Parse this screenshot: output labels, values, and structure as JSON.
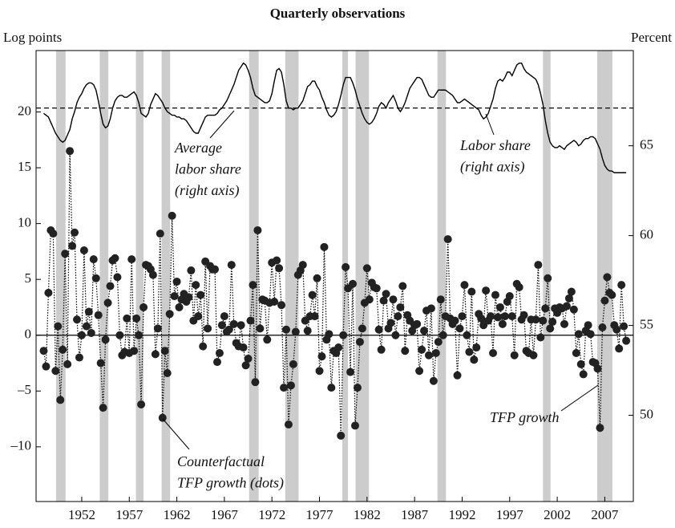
{
  "chart_data": {
    "type": "line",
    "title": "Quarterly observations",
    "y_label": "Log points",
    "y2_label": "Percent",
    "xlim": [
      1947.2,
      2010.0
    ],
    "xticks": [
      1952,
      1957,
      1962,
      1967,
      1972,
      1977,
      1982,
      1987,
      1992,
      1997,
      2002,
      2007
    ],
    "ylim": [
      -14.9,
      25.5
    ],
    "yticks": [
      {
        "value": -10,
        "label": "–10"
      },
      {
        "value": -5,
        "label": "–5"
      },
      0,
      5,
      10,
      15,
      20
    ],
    "y2lim": [
      45.2,
      70.3
    ],
    "y2ticks": [
      50,
      55,
      60,
      65
    ],
    "shaded_periods": [
      [
        1949.3,
        1950.3
      ],
      [
        1953.9,
        1954.8
      ],
      [
        1957.7,
        1958.5
      ],
      [
        1960.4,
        1961.3
      ],
      [
        1969.6,
        1970.6
      ],
      [
        1973.4,
        1974.8
      ],
      [
        1979.4,
        1980.0
      ],
      [
        1980.8,
        1982.2
      ],
      [
        1989.4,
        1990.3
      ],
      [
        2000.5,
        2001.3
      ],
      [
        2006.2,
        2007.8
      ]
    ],
    "shade_color": "#cccccc",
    "hlines": [
      {
        "value": 0,
        "axis": "y",
        "dash": "solid"
      },
      {
        "value": 67.1,
        "axis": "y2",
        "dash": "dashed"
      }
    ],
    "x": [
      1948,
      1948.25,
      1948.5,
      1948.75,
      1949,
      1949.25,
      1949.5,
      1949.75,
      1950,
      1950.25,
      1950.5,
      1950.75,
      1951,
      1951.25,
      1951.5,
      1951.75,
      1952,
      1952.25,
      1952.5,
      1952.75,
      1953,
      1953.25,
      1953.5,
      1953.75,
      1954,
      1954.25,
      1954.5,
      1954.75,
      1955,
      1955.25,
      1955.5,
      1955.75,
      1956,
      1956.25,
      1956.5,
      1956.75,
      1957,
      1957.25,
      1957.5,
      1957.75,
      1958,
      1958.25,
      1958.5,
      1958.75,
      1959,
      1959.25,
      1959.5,
      1959.75,
      1960,
      1960.25,
      1960.5,
      1960.75,
      1961,
      1961.25,
      1961.5,
      1961.75,
      1962,
      1962.25,
      1962.5,
      1962.75,
      1963,
      1963.25,
      1963.5,
      1963.75,
      1964,
      1964.25,
      1964.5,
      1964.75,
      1965,
      1965.25,
      1965.5,
      1965.75,
      1966,
      1966.25,
      1966.5,
      1966.75,
      1967,
      1967.25,
      1967.5,
      1967.75,
      1968,
      1968.25,
      1968.5,
      1968.75,
      1969,
      1969.25,
      1969.5,
      1969.75,
      1970,
      1970.25,
      1970.5,
      1970.75,
      1971,
      1971.25,
      1971.5,
      1971.75,
      1972,
      1972.25,
      1972.5,
      1972.75,
      1973,
      1973.25,
      1973.5,
      1973.75,
      1974,
      1974.25,
      1974.5,
      1974.75,
      1975,
      1975.25,
      1975.5,
      1975.75,
      1976,
      1976.25,
      1976.5,
      1976.75,
      1977,
      1977.25,
      1977.5,
      1977.75,
      1978,
      1978.25,
      1978.5,
      1978.75,
      1979,
      1979.25,
      1979.5,
      1979.75,
      1980,
      1980.25,
      1980.5,
      1980.75,
      1981,
      1981.25,
      1981.5,
      1981.75,
      1982,
      1982.25,
      1982.5,
      1982.75,
      1983,
      1983.25,
      1983.5,
      1983.75,
      1984,
      1984.25,
      1984.5,
      1984.75,
      1985,
      1985.25,
      1985.5,
      1985.75,
      1986,
      1986.25,
      1986.5,
      1986.75,
      1987,
      1987.25,
      1987.5,
      1987.75,
      1988,
      1988.25,
      1988.5,
      1988.75,
      1989,
      1989.25,
      1989.5,
      1989.75,
      1990,
      1990.25,
      1990.5,
      1990.75,
      1991,
      1991.25,
      1991.5,
      1991.75,
      1992,
      1992.25,
      1992.5,
      1992.75,
      1993,
      1993.25,
      1993.5,
      1993.75,
      1994,
      1994.25,
      1994.5,
      1994.75,
      1995,
      1995.25,
      1995.5,
      1995.75,
      1996,
      1996.25,
      1996.5,
      1996.75,
      1997,
      1997.25,
      1997.5,
      1997.75,
      1998,
      1998.25,
      1998.5,
      1998.75,
      1999,
      1999.25,
      1999.5,
      1999.75,
      2000,
      2000.25,
      2000.5,
      2000.75,
      2001,
      2001.25,
      2001.5,
      2001.75,
      2002,
      2002.25,
      2002.5,
      2002.75,
      2003,
      2003.25,
      2003.5,
      2003.75,
      2004,
      2004.25,
      2004.5,
      2004.75,
      2005,
      2005.25,
      2005.5,
      2005.75,
      2006,
      2006.25,
      2006.5,
      2006.75,
      2007,
      2007.25,
      2007.5,
      2007.75,
      2008,
      2008.25,
      2008.5,
      2008.75,
      2009,
      2009.25
    ],
    "series": [
      {
        "color": "#000000",
        "line": "dotted",
        "axis": "y",
        "values": [
          -1.4,
          -2.8,
          3.8,
          9.4,
          9.1,
          -3.2,
          0.8,
          -5.8,
          -1.3,
          7.3,
          -2.6,
          16.5,
          8.0,
          9.2,
          1.4,
          -2.0,
          0,
          7.6,
          0.8,
          2.1,
          0.2,
          6.8,
          5.1,
          1.8,
          -2.5,
          -6.5,
          -0.4,
          2.9,
          4.4,
          6.7,
          6.9,
          5.2,
          0,
          -1.8,
          -1.5,
          1.5,
          -1.6,
          6.8,
          -1.4,
          1.5,
          0,
          -6.2,
          2.5,
          6.3,
          6.2,
          5.9,
          5.4,
          -1.7,
          0.6,
          9.1,
          -7.4,
          -1.4,
          -3.4,
          1.9,
          10.7,
          3.5,
          4.8,
          2.5,
          3.2,
          3.7,
          3.0,
          3.4,
          5.8,
          1.3,
          4.5,
          1.7,
          3.6,
          -1.0,
          6.6,
          0.6,
          6.2,
          5.9,
          5.9,
          -2.4,
          -1.6,
          0.9,
          1.7,
          0.3,
          0.5,
          6.3,
          1.0,
          -0.7,
          -1.0,
          0.9,
          -1.1,
          -2.7,
          -2.1,
          1.3,
          4.5,
          -4.2,
          9.4,
          0.6,
          3.2,
          3.1,
          -0.4,
          2.9,
          6.5,
          3.0,
          6.7,
          6.0,
          2.7,
          -4.7,
          0.5,
          -8.0,
          -4.5,
          -2.6,
          0.3,
          5.4,
          5.8,
          6.3,
          1.3,
          0.4,
          1.7,
          3.6,
          1.7,
          5.1,
          -3.2,
          -1.9,
          7.9,
          -0.4,
          0.1,
          -4.7,
          -1.4,
          -1.6,
          -1.1,
          -9.0,
          0,
          6.1,
          4.2,
          -3.3,
          4.6,
          -8.1,
          -4.7,
          -0.6,
          0.6,
          2.9,
          6.0,
          3.2,
          4.7,
          4.3,
          4.2,
          0.5,
          -1.3,
          3.1,
          3.7,
          0.6,
          1.1,
          3.2,
          0,
          1.7,
          2.5,
          4.4,
          -1.4,
          1.8,
          1.3,
          0.4,
          0.9,
          1.0,
          -3.2,
          -1.3,
          0.4,
          2.2,
          -1.8,
          2.4,
          -4.1,
          -1.6,
          -0.6,
          3.2,
          0,
          1.7,
          8.6,
          1.5,
          1.0,
          1.3,
          -3.6,
          0.6,
          1.7,
          4.5,
          0,
          -1.5,
          3.9,
          -2.2,
          -1.1,
          1.9,
          1.5,
          0.9,
          4.0,
          1.3,
          1.7,
          -1.6,
          3.6,
          1.6,
          2.5,
          1.0,
          1.7,
          3.0,
          3.5,
          1.7,
          -1.8,
          4.6,
          4.3,
          1.4,
          1.8,
          -1.4,
          -1.6,
          1.4,
          -1.8,
          1.4,
          6.3,
          -0.2,
          1.3,
          2.4,
          5.1,
          0.6,
          1.2,
          2.4,
          2.0,
          2.5,
          2.4,
          1.0,
          2.6,
          3.3,
          3.9,
          2.3,
          -1.6,
          0.1,
          -2.6,
          -3.5,
          0.4,
          0.9,
          0.1,
          -2.4,
          -2.5,
          -3.0,
          -8.3,
          0.7,
          3.1,
          5.2,
          3.8,
          3.6,
          0.9,
          0.5,
          -1.2,
          4.5,
          0.8,
          -0.5
        ]
      },
      {
        "color": "#222222",
        "marker": "circle",
        "axis": "y",
        "values": [
          -1.4,
          -2.8,
          3.8,
          9.4,
          9.1,
          -3.2,
          0.8,
          -5.8,
          -1.3,
          7.3,
          -2.6,
          16.5,
          8.0,
          9.2,
          1.4,
          -2.0,
          0,
          7.6,
          0.8,
          2.1,
          0.2,
          6.8,
          5.1,
          1.8,
          -2.5,
          -6.5,
          -0.4,
          2.9,
          4.4,
          6.7,
          6.9,
          5.2,
          0,
          -1.8,
          -1.5,
          1.5,
          -1.6,
          6.8,
          -1.4,
          1.5,
          0,
          -6.2,
          2.5,
          6.3,
          6.2,
          5.9,
          5.4,
          -1.7,
          0.6,
          9.1,
          -7.4,
          -1.4,
          -3.4,
          1.9,
          10.7,
          3.5,
          4.8,
          2.5,
          3.2,
          3.7,
          3.0,
          3.4,
          5.8,
          1.3,
          4.5,
          1.7,
          3.6,
          -1.0,
          6.6,
          0.6,
          6.2,
          5.9,
          5.9,
          -2.4,
          -1.6,
          0.9,
          1.7,
          0.3,
          0.5,
          6.3,
          1.0,
          -0.7,
          -1.0,
          0.9,
          -1.1,
          -2.7,
          -2.1,
          1.3,
          4.5,
          -4.2,
          9.4,
          0.6,
          3.2,
          3.1,
          -0.4,
          2.9,
          6.5,
          3.0,
          6.7,
          6.0,
          2.7,
          -4.7,
          0.5,
          -8.0,
          -4.5,
          -2.6,
          0.3,
          5.4,
          5.8,
          6.3,
          1.3,
          0.4,
          1.7,
          3.6,
          1.7,
          5.1,
          -3.2,
          -1.9,
          7.9,
          -0.4,
          0.1,
          -4.7,
          -1.4,
          -1.6,
          -1.1,
          -9.0,
          0,
          6.1,
          4.2,
          -3.3,
          4.6,
          -8.1,
          -4.7,
          -0.6,
          0.6,
          2.9,
          6.0,
          3.2,
          4.7,
          4.3,
          4.2,
          0.5,
          -1.3,
          3.1,
          3.7,
          0.6,
          1.1,
          3.2,
          0,
          1.7,
          2.5,
          4.4,
          -1.4,
          1.8,
          1.3,
          0.4,
          0.9,
          1.0,
          -3.2,
          -1.3,
          0.4,
          2.2,
          -1.8,
          2.4,
          -4.1,
          -1.6,
          -0.6,
          3.2,
          0,
          1.7,
          8.6,
          1.5,
          1.0,
          1.3,
          -3.6,
          0.6,
          1.7,
          4.5,
          0,
          -1.5,
          3.9,
          -2.2,
          -1.1,
          1.9,
          1.5,
          0.9,
          4.0,
          1.3,
          1.7,
          -1.6,
          3.6,
          1.6,
          2.5,
          1.0,
          1.7,
          3.0,
          3.5,
          1.7,
          -1.8,
          4.6,
          4.3,
          1.4,
          1.8,
          -1.4,
          -1.6,
          1.4,
          -1.8,
          1.4,
          6.3,
          -0.2,
          1.3,
          2.4,
          5.1,
          0.6,
          1.2,
          2.4,
          2.0,
          2.5,
          2.4,
          1.0,
          2.6,
          3.3,
          3.9,
          2.3,
          -1.6,
          0.1,
          -2.6,
          -3.5,
          0.4,
          0.9,
          0.1,
          -2.4,
          -2.5,
          -3.0,
          -8.3,
          0.7,
          3.1,
          5.2,
          3.8,
          3.6,
          0.9,
          0.5,
          -1.2,
          4.5,
          0.8,
          -0.5
        ]
      },
      {
        "color": "#000000",
        "line": "solid",
        "axis": "y2",
        "values": [
          66.8,
          66.7,
          66.6,
          66.3,
          66.0,
          65.7,
          65.5,
          65.3,
          65.2,
          65.3,
          65.6,
          65.9,
          66.5,
          66.9,
          67.4,
          67.7,
          67.9,
          68.2,
          68.4,
          68.5,
          68.5,
          68.4,
          68.1,
          67.5,
          66.8,
          66.2,
          66.0,
          66.1,
          66.5,
          67.1,
          67.5,
          67.7,
          67.8,
          67.8,
          67.7,
          67.7,
          67.8,
          67.9,
          68.0,
          67.8,
          67.4,
          66.8,
          66.7,
          66.6,
          66.8,
          67.3,
          67.6,
          67.9,
          67.8,
          67.6,
          67.4,
          67.1,
          66.9,
          66.8,
          66.7,
          66.7,
          66.6,
          66.6,
          66.5,
          66.5,
          66.4,
          66.2,
          66.0,
          65.8,
          65.7,
          65.7,
          66.0,
          66.3,
          66.6,
          66.7,
          66.7,
          66.7,
          66.7,
          66.8,
          67.0,
          67.1,
          67.3,
          67.5,
          67.8,
          68.1,
          68.4,
          68.8,
          69.2,
          69.4,
          69.6,
          69.5,
          69.2,
          68.8,
          68.2,
          67.8,
          67.7,
          67.6,
          67.5,
          67.4,
          67.4,
          67.5,
          67.9,
          68.6,
          69.2,
          69.3,
          69.1,
          68.4,
          67.5,
          67.1,
          67.1,
          67.0,
          67.1,
          67.1,
          67.3,
          67.5,
          67.9,
          68.3,
          68.4,
          68.6,
          68.6,
          68.3,
          68.1,
          67.7,
          67.4,
          67.0,
          66.7,
          66.6,
          66.7,
          66.9,
          67.3,
          67.8,
          68.4,
          68.8,
          68.8,
          68.8,
          68.5,
          68.1,
          67.6,
          67.2,
          66.8,
          66.5,
          66.3,
          66.2,
          66.3,
          66.5,
          66.8,
          67.2,
          67.4,
          67.3,
          67.1,
          67.4,
          67.6,
          67.8,
          67.5,
          67.1,
          66.9,
          67.1,
          67.4,
          67.8,
          68.2,
          68.4,
          68.6,
          68.8,
          68.8,
          68.7,
          68.4,
          68.1,
          67.8,
          67.7,
          67.7,
          67.9,
          68.1,
          68.1,
          68.1,
          68.1,
          68.0,
          67.9,
          67.8,
          67.6,
          67.4,
          67.4,
          67.5,
          67.6,
          67.5,
          67.4,
          67.3,
          67.2,
          67.1,
          67.0,
          66.7,
          66.5,
          66.6,
          66.8,
          67.2,
          67.6,
          68.2,
          68.6,
          68.7,
          68.6,
          68.8,
          69.1,
          69.1,
          68.9,
          69.2,
          69.5,
          69.6,
          69.6,
          69.3,
          69.1,
          69.0,
          68.9,
          68.8,
          68.7,
          68.4,
          67.9,
          67.3,
          66.4,
          65.7,
          65.2,
          65.0,
          64.9,
          64.9,
          65.0,
          64.9,
          64.8,
          65.0,
          65.1,
          65.2,
          65.3,
          65.2,
          65.0,
          65.1,
          65.3,
          65.4,
          65.4,
          65.5,
          65.5,
          65.4,
          65.1,
          64.8,
          64.3,
          63.9,
          63.7,
          63.6,
          63.6,
          63.5,
          63.5,
          63.5,
          63.5,
          63.5,
          63.5
        ]
      }
    ],
    "annotations": [
      {
        "lines": [
          "Average",
          "labor share",
          "(right axis)"
        ]
      },
      {
        "lines": [
          "Labor share",
          "(right axis)"
        ]
      },
      {
        "lines": [
          "TFP growth"
        ]
      },
      {
        "lines": [
          "Counterfactual",
          "TFP growth (dots)"
        ]
      }
    ]
  }
}
